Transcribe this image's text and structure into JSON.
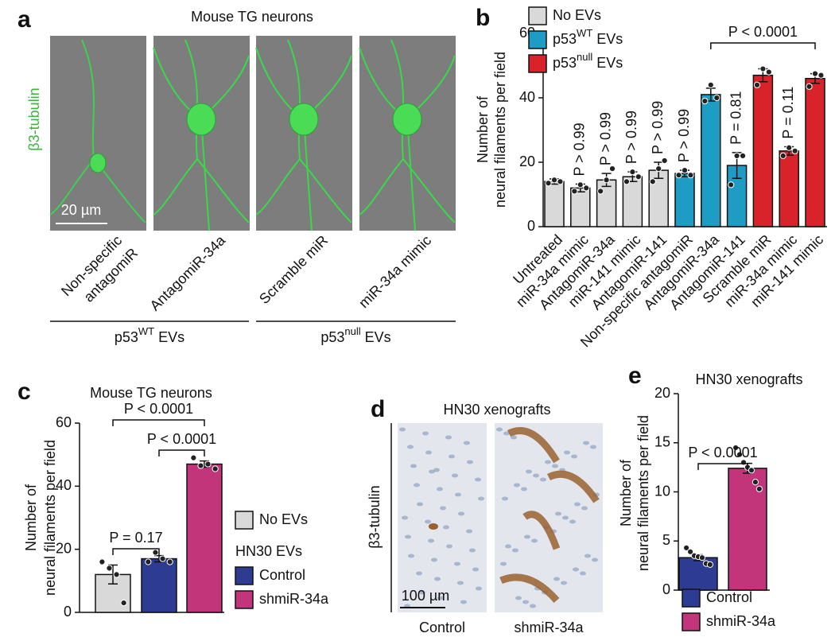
{
  "panel_a": {
    "label": "a",
    "title": "Mouse TG neurons",
    "stain": "β3-tubulin",
    "scale_bar": "20 µm",
    "images": [
      [
        "Non-specific",
        "antagomiR"
      ],
      [
        "AntagomiR-34a"
      ],
      [
        "Scramble miR"
      ],
      [
        "miR-34a mimic"
      ]
    ],
    "groups": [
      [
        "p53",
        "WT",
        " EVs"
      ],
      [
        "p53",
        "null",
        " EVs"
      ]
    ]
  },
  "panel_d": {
    "label": "d",
    "title": "HN30 xenografts",
    "stain": "β3-tubulin",
    "scale_bar": "100 µm",
    "images": [
      "Control",
      "shmiR-34a"
    ]
  },
  "chart_data": [
    {
      "type": "bar",
      "label": "b",
      "ylabel": [
        "Number of",
        "neural filaments per field"
      ],
      "categories": [
        "Untreated",
        "miR-34a mimic",
        "AntagomiR-34a",
        "miR-141 mimic",
        "AntagomiR-141",
        "Non-specific antagomiR",
        "AntagomiR-34a",
        "AntagomiR-141",
        "Scramble miR",
        "miR-34a mimic",
        "miR-141 mimic"
      ],
      "series": [
        {
          "name": "No EVs",
          "color": "#d9d9d9",
          "values": [
            14,
            12,
            14.5,
            15.5,
            17.5,
            null,
            null,
            null,
            null,
            null,
            null
          ],
          "errors": [
            0.8,
            1.2,
            2,
            1.5,
            2.5,
            null,
            null,
            null,
            null,
            null,
            null
          ],
          "points": [
            [
              13.5,
              14.5,
              14
            ],
            [
              11,
              13,
              12
            ],
            [
              11,
              14.5,
              18
            ],
            [
              14,
              17,
              15.5
            ],
            [
              14,
              18,
              20.5
            ],
            null,
            null,
            null,
            null,
            null,
            null
          ]
        },
        {
          "name": [
            "p53",
            "WT",
            " EVs"
          ],
          "color": "#1f9cc4",
          "values": [
            null,
            null,
            null,
            null,
            null,
            16.5,
            41,
            19,
            null,
            null,
            null
          ],
          "errors": [
            null,
            null,
            null,
            null,
            null,
            1,
            2,
            4,
            null,
            null,
            null
          ],
          "points": [
            null,
            null,
            null,
            null,
            null,
            [
              16,
              17.5,
              16
            ],
            [
              39,
              44,
              40
            ],
            [
              13,
              22,
              22
            ],
            null,
            null,
            null
          ]
        },
        {
          "name": [
            "p53",
            "null",
            " EVs"
          ],
          "color": "#d8232a",
          "values": [
            null,
            null,
            null,
            null,
            null,
            null,
            null,
            null,
            47,
            23.5,
            46
          ],
          "errors": [
            null,
            null,
            null,
            null,
            null,
            null,
            null,
            null,
            2,
            1.3,
            1.5
          ],
          "points": [
            null,
            null,
            null,
            null,
            null,
            null,
            null,
            null,
            [
              44,
              49,
              48
            ],
            [
              22,
              24.5,
              23.5
            ],
            [
              43.5,
              47.5,
              47
            ]
          ]
        }
      ],
      "p_labels": [
        null,
        "P > 0.99",
        "P > 0.99",
        "P > 0.99",
        "P > 0.99",
        "P > 0.99",
        null,
        "P = 0.81",
        null,
        "P = 0.11",
        null
      ],
      "brackets": [
        {
          "label": "P < 0.0001"
        }
      ],
      "ylim": [
        0,
        60
      ],
      "yticks": [
        0,
        20,
        40,
        60
      ]
    },
    {
      "type": "bar",
      "label": "c",
      "title": "Mouse TG neurons",
      "ylabel": [
        "Number of",
        "neural filaments per field"
      ],
      "categories": [
        null
      ],
      "series": [
        {
          "name": "No EVs",
          "color": "#d9d9d9",
          "values": [
            12
          ],
          "errors": [
            3
          ],
          "points": [
            [
              16,
              14,
              12,
              3
            ]
          ]
        },
        {
          "name": "Control",
          "color": "#2e3b93",
          "values": [
            17
          ],
          "errors": [
            1
          ],
          "points": [
            [
              16,
              19,
              17,
              16
            ]
          ]
        },
        {
          "name": "shmiR-34a",
          "color": "#c2357b",
          "values": [
            47
          ],
          "errors": [
            1
          ],
          "points": [
            [
              49,
              46.5,
              47,
              45.5
            ]
          ]
        }
      ],
      "legend_heading": "HN30 EVs",
      "brackets": [
        {
          "label": "P = 0.17"
        },
        {
          "label": "P < 0.0001"
        },
        {
          "label": "P < 0.0001"
        }
      ],
      "ylim": [
        0,
        60
      ],
      "yticks": [
        0,
        20,
        40,
        60
      ]
    },
    {
      "type": "bar",
      "label": "e",
      "title": "HN30 xenografts",
      "ylabel": [
        "Number of",
        "neural filaments per field"
      ],
      "categories": [
        null
      ],
      "series": [
        {
          "name": "Control",
          "color": "#2e3b93",
          "values": [
            3.3
          ],
          "errors": [
            0.3
          ],
          "points": [
            [
              4.3,
              3.9,
              3.5,
              3.4,
              3.3,
              2.7,
              2.6
            ]
          ]
        },
        {
          "name": "shmiR-34a",
          "color": "#c2357b",
          "values": [
            12.4
          ],
          "errors": [
            0.5
          ],
          "points": [
            [
              14.5,
              13.8,
              13,
              12.5,
              12.2,
              11,
              10.3
            ]
          ]
        }
      ],
      "brackets": [
        {
          "label": "P < 0.0001"
        }
      ],
      "ylim": [
        0,
        20
      ],
      "yticks": [
        0,
        5,
        10,
        15,
        20
      ]
    }
  ]
}
